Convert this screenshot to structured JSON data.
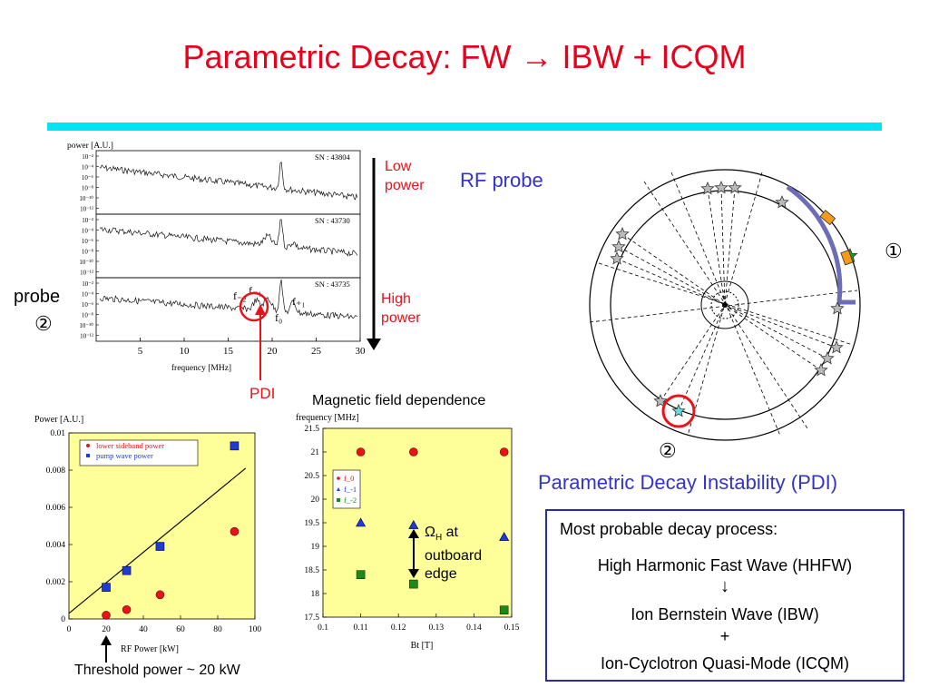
{
  "title": "Parametric Decay:  FW → IBW + ICQM",
  "colors": {
    "title": "#e8001c",
    "rule": "#00e5f5",
    "plot_bg": "#ffff99",
    "red_dot": "#e8121a",
    "blue_square": "#1f3bd6",
    "green_square": "#1b8a1b",
    "probe_label": "#3333cc"
  },
  "spectrum_panel": {
    "ylabel": "power  [A.U.]",
    "xlabel": "frequency  [MHz]",
    "xticks": [
      "5",
      "10",
      "15",
      "20",
      "25",
      "30"
    ],
    "traces": [
      {
        "sn": "SN : 43804",
        "yticks": [
          "10⁻²",
          "10⁻⁴",
          "10⁻⁶",
          "10⁻⁸",
          "10⁻¹⁰",
          "10⁻¹²"
        ]
      },
      {
        "sn": "SN : 43730",
        "yticks": [
          "10⁻²",
          "10⁻⁴",
          "10⁻⁶",
          "10⁻⁸",
          "10⁻¹⁰",
          "10⁻¹²"
        ]
      },
      {
        "sn": "SN : 43735",
        "yticks": [
          "10⁻²",
          "10⁻⁴",
          "10⁻⁶",
          "10⁻⁸",
          "10⁻¹⁰",
          "10⁻¹²"
        ]
      }
    ],
    "peak_labels": {
      "f_minus2": "f₋₂",
      "f_minus1": "f₋₁",
      "f_0": "f₀",
      "f_plus1": "f₊₁"
    },
    "low_power": "Low\npower",
    "high_power": "High\npower",
    "pdi_label": "PDI",
    "probe_label": "probe",
    "probe_number": "②"
  },
  "rf_probe": {
    "label": "RF probe",
    "marker_1": "①",
    "marker_2": "②",
    "caption": "Parametric Decay Instability (PDI)"
  },
  "threshold_label": "Threshold power ~ 20 kW",
  "magnetic_title": "Magnetic field dependence",
  "omega_annotation": {
    "symbol": "Ω",
    "subscript": "H",
    "text1": " at",
    "text2": "outboard",
    "text3": "edge"
  },
  "decay_box": {
    "header": "Most probable decay process:",
    "line1": "High Harmonic Fast Wave (HHFW)",
    "arrow": "↓",
    "line2": "Ion Bernstein Wave (IBW)",
    "plus": "+",
    "line3": "Ion-Cyclotron Quasi-Mode (ICQM)"
  },
  "chart_data": [
    {
      "type": "scatter",
      "title": "",
      "ylabel": "Power  [A.U.]",
      "xlabel": "RF Power [kW]",
      "xlim": [
        0,
        100
      ],
      "ylim": [
        0,
        0.01
      ],
      "xticks": [
        "0",
        "20",
        "40",
        "60",
        "80",
        "100"
      ],
      "yticks": [
        "0",
        "0.002",
        "0.004",
        "0.006",
        "0.008",
        "0.01"
      ],
      "legend_position": "top-left",
      "series": [
        {
          "name": "lower sideband power",
          "marker": "circle",
          "color": "#e8121a",
          "points": [
            [
              20,
              0.0002
            ],
            [
              31,
              0.0005
            ],
            [
              49,
              0.0013
            ],
            [
              89,
              0.0047
            ]
          ]
        },
        {
          "name": "pump wave power",
          "marker": "square",
          "color": "#1f3bd6",
          "points": [
            [
              20,
              0.0017
            ],
            [
              31,
              0.0026
            ],
            [
              49,
              0.0039
            ],
            [
              89,
              0.0093
            ]
          ]
        }
      ],
      "fit_line": [
        [
          0,
          0.0003
        ],
        [
          95,
          0.0081
        ]
      ]
    },
    {
      "type": "scatter",
      "title": "",
      "ylabel": "frequency  [MHz]",
      "xlabel": "Bt  [T]",
      "xlim": [
        0.1,
        0.15
      ],
      "ylim": [
        17.5,
        21.5
      ],
      "xticks": [
        "0.1",
        "0.11",
        "0.12",
        "0.13",
        "0.14",
        "0.15"
      ],
      "yticks": [
        "17.5",
        "18",
        "18.5",
        "19",
        "19.5",
        "20",
        "20.5",
        "21",
        "21.5"
      ],
      "legend_position": "top-left",
      "series": [
        {
          "name": "f_0",
          "marker": "circle",
          "color": "#e8121a",
          "points": [
            [
              0.11,
              21.0
            ],
            [
              0.124,
              21.0
            ],
            [
              0.148,
              21.0
            ]
          ]
        },
        {
          "name": "f_-1",
          "marker": "triangle",
          "color": "#1f3bd6",
          "points": [
            [
              0.11,
              19.5
            ],
            [
              0.124,
              19.45
            ],
            [
              0.148,
              19.2
            ]
          ]
        },
        {
          "name": "f_-2",
          "marker": "square",
          "color": "#1b8a1b",
          "points": [
            [
              0.11,
              18.4
            ],
            [
              0.124,
              18.2
            ],
            [
              0.148,
              17.65
            ]
          ]
        }
      ]
    }
  ]
}
